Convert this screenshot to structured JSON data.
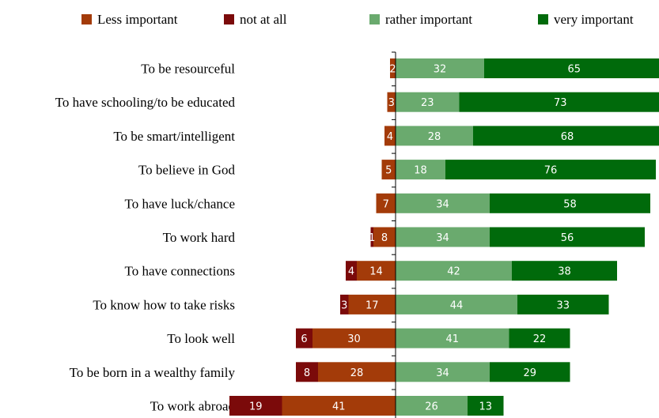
{
  "chart_data": {
    "type": "bar",
    "orientation": "horizontal",
    "stacked": "diverging",
    "title": "",
    "xlabel": "",
    "ylabel": "",
    "legend_position": "top",
    "grid": false,
    "xlim": [
      -60,
      100
    ],
    "categories": [
      "To be resourceful",
      "To have schooling/to be educated",
      "To be smart/intelligent",
      "To believe in God",
      "To have luck/chance",
      "To work hard",
      "To have connections",
      "To know how to take risks",
      "To look well",
      "To be born in a wealthy family",
      "To work abroad"
    ],
    "legend_order": [
      "Less important",
      "not at all",
      "rather important",
      "very important"
    ],
    "series": [
      {
        "name": "not at all",
        "side": "negative",
        "color": "#7b0a0a",
        "values": [
          0,
          0,
          0,
          0,
          0,
          1,
          4,
          3,
          6,
          8,
          19
        ],
        "labels": [
          "",
          "",
          "",
          "",
          "",
          "1",
          "4",
          "3",
          "6",
          "8",
          "19"
        ]
      },
      {
        "name": "Less important",
        "side": "negative",
        "color": "#a33b09",
        "values": [
          2,
          3,
          4,
          5,
          7,
          8,
          14,
          17,
          30,
          28,
          41
        ],
        "labels": [
          "2",
          "3",
          "4",
          "5",
          "7",
          "8",
          "14",
          "17",
          "30",
          "28",
          "41"
        ]
      },
      {
        "name": "rather important",
        "side": "positive",
        "color": "#6aaa6e",
        "values": [
          32,
          23,
          28,
          18,
          34,
          34,
          42,
          44,
          41,
          34,
          26
        ],
        "labels": [
          "32",
          "23",
          "28",
          "18",
          "34",
          "34",
          "42",
          "44",
          "41",
          "34",
          "26"
        ]
      },
      {
        "name": "very important",
        "side": "positive",
        "color": "#006a0b",
        "values": [
          65,
          73,
          68,
          76,
          58,
          56,
          38,
          33,
          22,
          29,
          13
        ],
        "labels": [
          "65",
          "73",
          "68",
          "76",
          "58",
          "56",
          "38",
          "33",
          "22",
          "29",
          "13"
        ]
      }
    ]
  }
}
